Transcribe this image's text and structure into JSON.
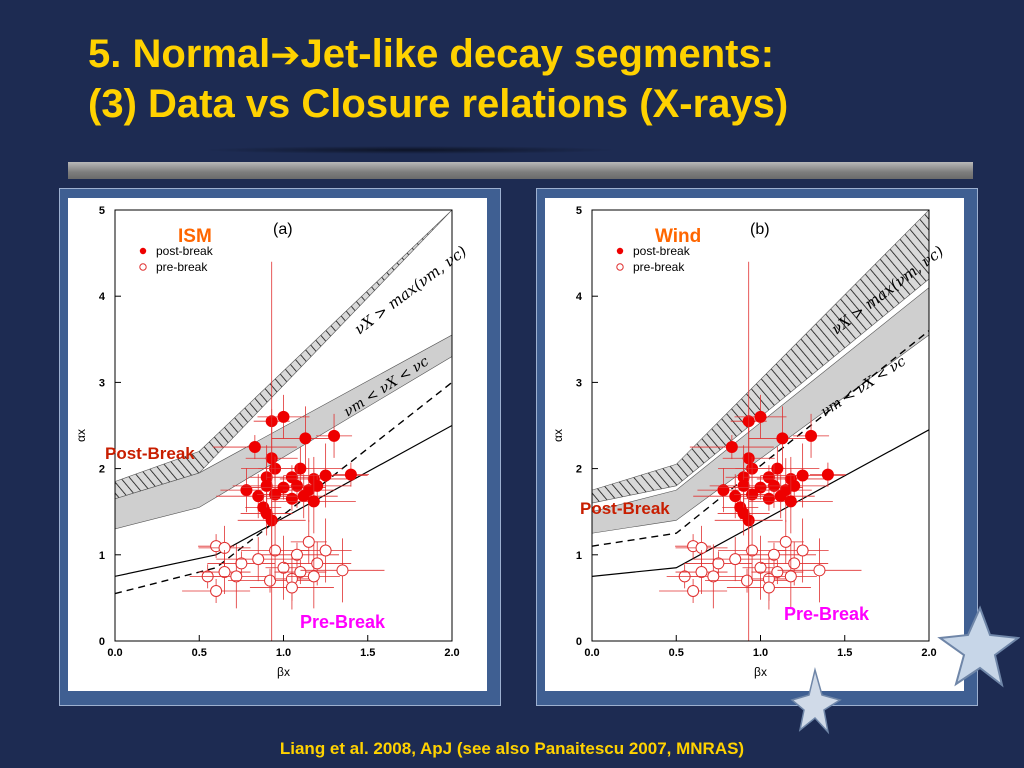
{
  "slide": {
    "title_line1_a": "5. Normal",
    "title_arrow": "➔",
    "title_line1_b": "Jet-like decay segments:",
    "title_line2": "(3) Data vs Closure relations (X-rays)",
    "citation": "Liang et al. 2008, ApJ (see also Panaitescu 2007, MNRAS)",
    "colors": {
      "background": "#1d2b52",
      "title": "#ffd200",
      "post_break_label": "#d01c00",
      "pre_break_label": "#ff00ff",
      "env_label": "#ff6600"
    }
  },
  "panels": [
    {
      "panel_letter": "(a)",
      "env_label": "ISM",
      "post_break_label": "Post-Break",
      "pre_break_label": "Pre-Break",
      "legend_post": "post-break",
      "legend_pre": "pre-break",
      "band_upper_label": "νX > max(νm, νc)",
      "band_lower_label": "νm < νX < νc",
      "xlabel": "βx",
      "ylabel": "αx"
    },
    {
      "panel_letter": "(b)",
      "env_label": "Wind",
      "post_break_label": "Post-Break",
      "pre_break_label": "Pre-Break",
      "legend_post": "post-break",
      "legend_pre": "pre-break",
      "band_upper_label": "νX > max(νm, νc)",
      "band_lower_label": "νm < νX < νc",
      "xlabel": "βx",
      "ylabel": "αx"
    }
  ],
  "chart_data": [
    {
      "type": "scatter",
      "title": "(a)",
      "xlabel": "βx",
      "ylabel": "αx",
      "xlim": [
        0,
        2
      ],
      "ylim": [
        0,
        5
      ],
      "xticks": [
        "0.0",
        "0.5",
        "1.0",
        "1.5",
        "2.0"
      ],
      "yticks": [
        "0",
        "1",
        "2",
        "3",
        "4",
        "5"
      ],
      "grid": false,
      "legend_position": "top-left",
      "hatched_band": {
        "label": "νX > max(νm, νc)",
        "lower": [
          [
            0,
            1.65
          ],
          [
            0.5,
            1.95
          ],
          [
            2,
            5.0
          ]
        ],
        "upper": [
          [
            0,
            1.85
          ],
          [
            0.5,
            2.2
          ],
          [
            2,
            5.0
          ]
        ]
      },
      "grey_band": {
        "label": "νm < νX < νc",
        "lower": [
          [
            0,
            1.3
          ],
          [
            0.5,
            1.55
          ],
          [
            2,
            3.3
          ]
        ],
        "upper": [
          [
            0,
            1.65
          ],
          [
            0.5,
            1.95
          ],
          [
            2,
            3.55
          ]
        ]
      },
      "dashed_line": [
        [
          0,
          0.55
        ],
        [
          0.6,
          0.85
        ],
        [
          2,
          3.0
        ]
      ],
      "solid_line": [
        [
          0,
          0.75
        ],
        [
          0.6,
          1.0
        ],
        [
          2,
          2.5
        ]
      ],
      "series": [
        {
          "name": "post-break",
          "marker": "filled",
          "points": [
            [
              0.93,
              2.55
            ],
            [
              1.0,
              2.6
            ],
            [
              1.13,
              2.35
            ],
            [
              0.83,
              2.25
            ],
            [
              1.3,
              2.38
            ],
            [
              0.93,
              2.12
            ],
            [
              0.95,
              2.0
            ],
            [
              1.1,
              2.0
            ],
            [
              0.9,
              1.9
            ],
            [
              1.05,
              1.9
            ],
            [
              1.18,
              1.88
            ],
            [
              1.25,
              1.92
            ],
            [
              1.4,
              1.93
            ],
            [
              0.78,
              1.75
            ],
            [
              0.9,
              1.8
            ],
            [
              1.0,
              1.78
            ],
            [
              1.08,
              1.8
            ],
            [
              1.15,
              1.75
            ],
            [
              1.2,
              1.8
            ],
            [
              0.85,
              1.68
            ],
            [
              0.95,
              1.7
            ],
            [
              1.05,
              1.65
            ],
            [
              1.12,
              1.68
            ],
            [
              1.18,
              1.62
            ],
            [
              0.88,
              1.55
            ],
            [
              0.9,
              1.48
            ],
            [
              0.93,
              1.4
            ]
          ]
        },
        {
          "name": "pre-break",
          "marker": "open",
          "points": [
            [
              0.6,
              1.1
            ],
            [
              0.65,
              1.08
            ],
            [
              0.95,
              1.05
            ],
            [
              1.08,
              1.0
            ],
            [
              1.15,
              1.15
            ],
            [
              1.25,
              1.05
            ],
            [
              0.75,
              0.9
            ],
            [
              0.85,
              0.95
            ],
            [
              1.0,
              0.85
            ],
            [
              1.1,
              0.8
            ],
            [
              1.2,
              0.9
            ],
            [
              1.35,
              0.82
            ],
            [
              0.55,
              0.75
            ],
            [
              0.65,
              0.8
            ],
            [
              0.72,
              0.75
            ],
            [
              0.92,
              0.7
            ],
            [
              1.05,
              0.72
            ],
            [
              1.18,
              0.75
            ],
            [
              0.6,
              0.58
            ],
            [
              1.05,
              0.62
            ]
          ]
        }
      ]
    },
    {
      "type": "scatter",
      "title": "(b)",
      "xlabel": "βx",
      "ylabel": "αx",
      "xlim": [
        0,
        2
      ],
      "ylim": [
        0,
        5
      ],
      "xticks": [
        "0.0",
        "0.5",
        "1.0",
        "1.5",
        "2.0"
      ],
      "yticks": [
        "0",
        "1",
        "2",
        "3",
        "4",
        "5"
      ],
      "grid": false,
      "legend_position": "top-left",
      "hatched_band": {
        "label": "νX > max(νm, νc)",
        "lower": [
          [
            0,
            1.6
          ],
          [
            0.5,
            1.8
          ],
          [
            2,
            4.2
          ]
        ],
        "upper": [
          [
            0,
            1.75
          ],
          [
            0.5,
            2.05
          ],
          [
            2,
            5.0
          ]
        ]
      },
      "grey_band": {
        "label": "νm < νX < νc",
        "lower": [
          [
            0,
            1.25
          ],
          [
            0.5,
            1.4
          ],
          [
            2,
            3.55
          ]
        ],
        "upper": [
          [
            0,
            1.5
          ],
          [
            0.5,
            1.75
          ],
          [
            2,
            4.1
          ]
        ]
      },
      "dashed_line": [
        [
          0,
          1.1
        ],
        [
          0.5,
          1.25
        ],
        [
          2,
          3.6
        ]
      ],
      "solid_line": [
        [
          0,
          0.75
        ],
        [
          0.5,
          0.85
        ],
        [
          2,
          2.45
        ]
      ],
      "series": [
        {
          "name": "post-break",
          "marker": "filled",
          "points": [
            [
              0.93,
              2.55
            ],
            [
              1.0,
              2.6
            ],
            [
              1.13,
              2.35
            ],
            [
              0.83,
              2.25
            ],
            [
              1.3,
              2.38
            ],
            [
              0.93,
              2.12
            ],
            [
              0.95,
              2.0
            ],
            [
              1.1,
              2.0
            ],
            [
              0.9,
              1.9
            ],
            [
              1.05,
              1.9
            ],
            [
              1.18,
              1.88
            ],
            [
              1.25,
              1.92
            ],
            [
              1.4,
              1.93
            ],
            [
              0.78,
              1.75
            ],
            [
              0.9,
              1.8
            ],
            [
              1.0,
              1.78
            ],
            [
              1.08,
              1.8
            ],
            [
              1.15,
              1.75
            ],
            [
              1.2,
              1.8
            ],
            [
              0.85,
              1.68
            ],
            [
              0.95,
              1.7
            ],
            [
              1.05,
              1.65
            ],
            [
              1.12,
              1.68
            ],
            [
              1.18,
              1.62
            ],
            [
              0.88,
              1.55
            ],
            [
              0.9,
              1.48
            ],
            [
              0.93,
              1.4
            ]
          ]
        },
        {
          "name": "pre-break",
          "marker": "open",
          "points": [
            [
              0.6,
              1.1
            ],
            [
              0.65,
              1.08
            ],
            [
              0.95,
              1.05
            ],
            [
              1.08,
              1.0
            ],
            [
              1.15,
              1.15
            ],
            [
              1.25,
              1.05
            ],
            [
              0.75,
              0.9
            ],
            [
              0.85,
              0.95
            ],
            [
              1.0,
              0.85
            ],
            [
              1.1,
              0.8
            ],
            [
              1.2,
              0.9
            ],
            [
              1.35,
              0.82
            ],
            [
              0.55,
              0.75
            ],
            [
              0.65,
              0.8
            ],
            [
              0.72,
              0.75
            ],
            [
              0.92,
              0.7
            ],
            [
              1.05,
              0.72
            ],
            [
              1.18,
              0.75
            ],
            [
              0.6,
              0.58
            ],
            [
              1.05,
              0.62
            ]
          ]
        }
      ]
    }
  ]
}
